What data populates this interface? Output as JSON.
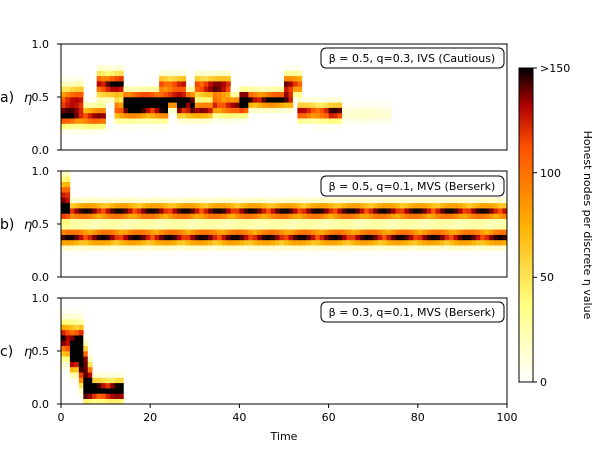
{
  "chart_data": {
    "type": "heatmap",
    "x_label": "Time",
    "x_ticks": [
      "0",
      "20",
      "40",
      "60",
      "80",
      "100"
    ],
    "x_range": [
      0,
      100
    ],
    "colorbar": {
      "label": "Honest nodes per discrete η value",
      "ticks": [
        "0",
        "50",
        "100",
        ">150"
      ],
      "range": [
        0,
        150
      ],
      "colormap": "afmhot_r"
    },
    "panels": [
      {
        "letter": "a)",
        "ylabel": "η",
        "y_ticks": [
          "0.0",
          "0.5",
          "1.0"
        ],
        "y_range": [
          0,
          1
        ],
        "annotation": "β = 0.5, q=0.3, IVS (Cautious)",
        "bands": [
          {
            "t_start": 0,
            "t_end": 5,
            "center": 0.48,
            "spread": 0.08,
            "intensity": 110
          },
          {
            "t_start": 0.5,
            "t_end": 10,
            "center": 0.32,
            "spread": 0.06,
            "intensity": 120
          },
          {
            "t_start": 8,
            "t_end": 14,
            "center": 0.62,
            "spread": 0.07,
            "intensity": 140
          },
          {
            "t_start": 12,
            "t_end": 24,
            "center": 0.38,
            "spread": 0.06,
            "intensity": 120
          },
          {
            "t_start": 14,
            "t_end": 30,
            "center": 0.48,
            "spread": 0.05,
            "intensity": 140
          },
          {
            "t_start": 22,
            "t_end": 28,
            "center": 0.62,
            "spread": 0.05,
            "intensity": 110
          },
          {
            "t_start": 26,
            "t_end": 34,
            "center": 0.38,
            "spread": 0.05,
            "intensity": 120
          },
          {
            "t_start": 30,
            "t_end": 38,
            "center": 0.6,
            "spread": 0.06,
            "intensity": 130
          },
          {
            "t_start": 34,
            "t_end": 42,
            "center": 0.42,
            "spread": 0.06,
            "intensity": 120
          },
          {
            "t_start": 40,
            "t_end": 52,
            "center": 0.48,
            "spread": 0.05,
            "intensity": 140
          },
          {
            "t_start": 50,
            "t_end": 54,
            "center": 0.62,
            "spread": 0.06,
            "intensity": 120
          },
          {
            "t_start": 53,
            "t_end": 63,
            "center": 0.36,
            "spread": 0.05,
            "intensity": 120
          },
          {
            "t_start": 60,
            "t_end": 74,
            "center": 0.34,
            "spread": 0.05,
            "intensity": 15
          }
        ]
      },
      {
        "letter": "b)",
        "ylabel": "η",
        "y_ticks": [
          "0.0",
          "0.5",
          "1.0"
        ],
        "y_range": [
          0,
          1
        ],
        "annotation": "β = 0.5, q=0.1, MVS (Berserk)",
        "bands": [
          {
            "t_start": 0,
            "t_end": 2,
            "center": 0.75,
            "spread": 0.12,
            "intensity": 110
          },
          {
            "t_start": 0,
            "t_end": 100,
            "center": 0.62,
            "spread": 0.05,
            "intensity": 130
          },
          {
            "t_start": 0,
            "t_end": 100,
            "center": 0.38,
            "spread": 0.05,
            "intensity": 130
          }
        ]
      },
      {
        "letter": "c)",
        "ylabel": "η",
        "y_ticks": [
          "0.0",
          "0.5",
          "1.0"
        ],
        "y_range": [
          0,
          1
        ],
        "annotation": "β = 0.3, q=0.1, MVS (Berserk)",
        "bands": [
          {
            "t_start": 0,
            "t_end": 5,
            "center": 0.6,
            "spread": 0.1,
            "intensity": 150
          },
          {
            "t_start": 2,
            "t_end": 6,
            "center": 0.42,
            "spread": 0.08,
            "intensity": 120
          },
          {
            "t_start": 4,
            "t_end": 7,
            "center": 0.28,
            "spread": 0.08,
            "intensity": 110
          },
          {
            "t_start": 5,
            "t_end": 14,
            "center": 0.13,
            "spread": 0.06,
            "intensity": 180
          }
        ]
      }
    ]
  }
}
